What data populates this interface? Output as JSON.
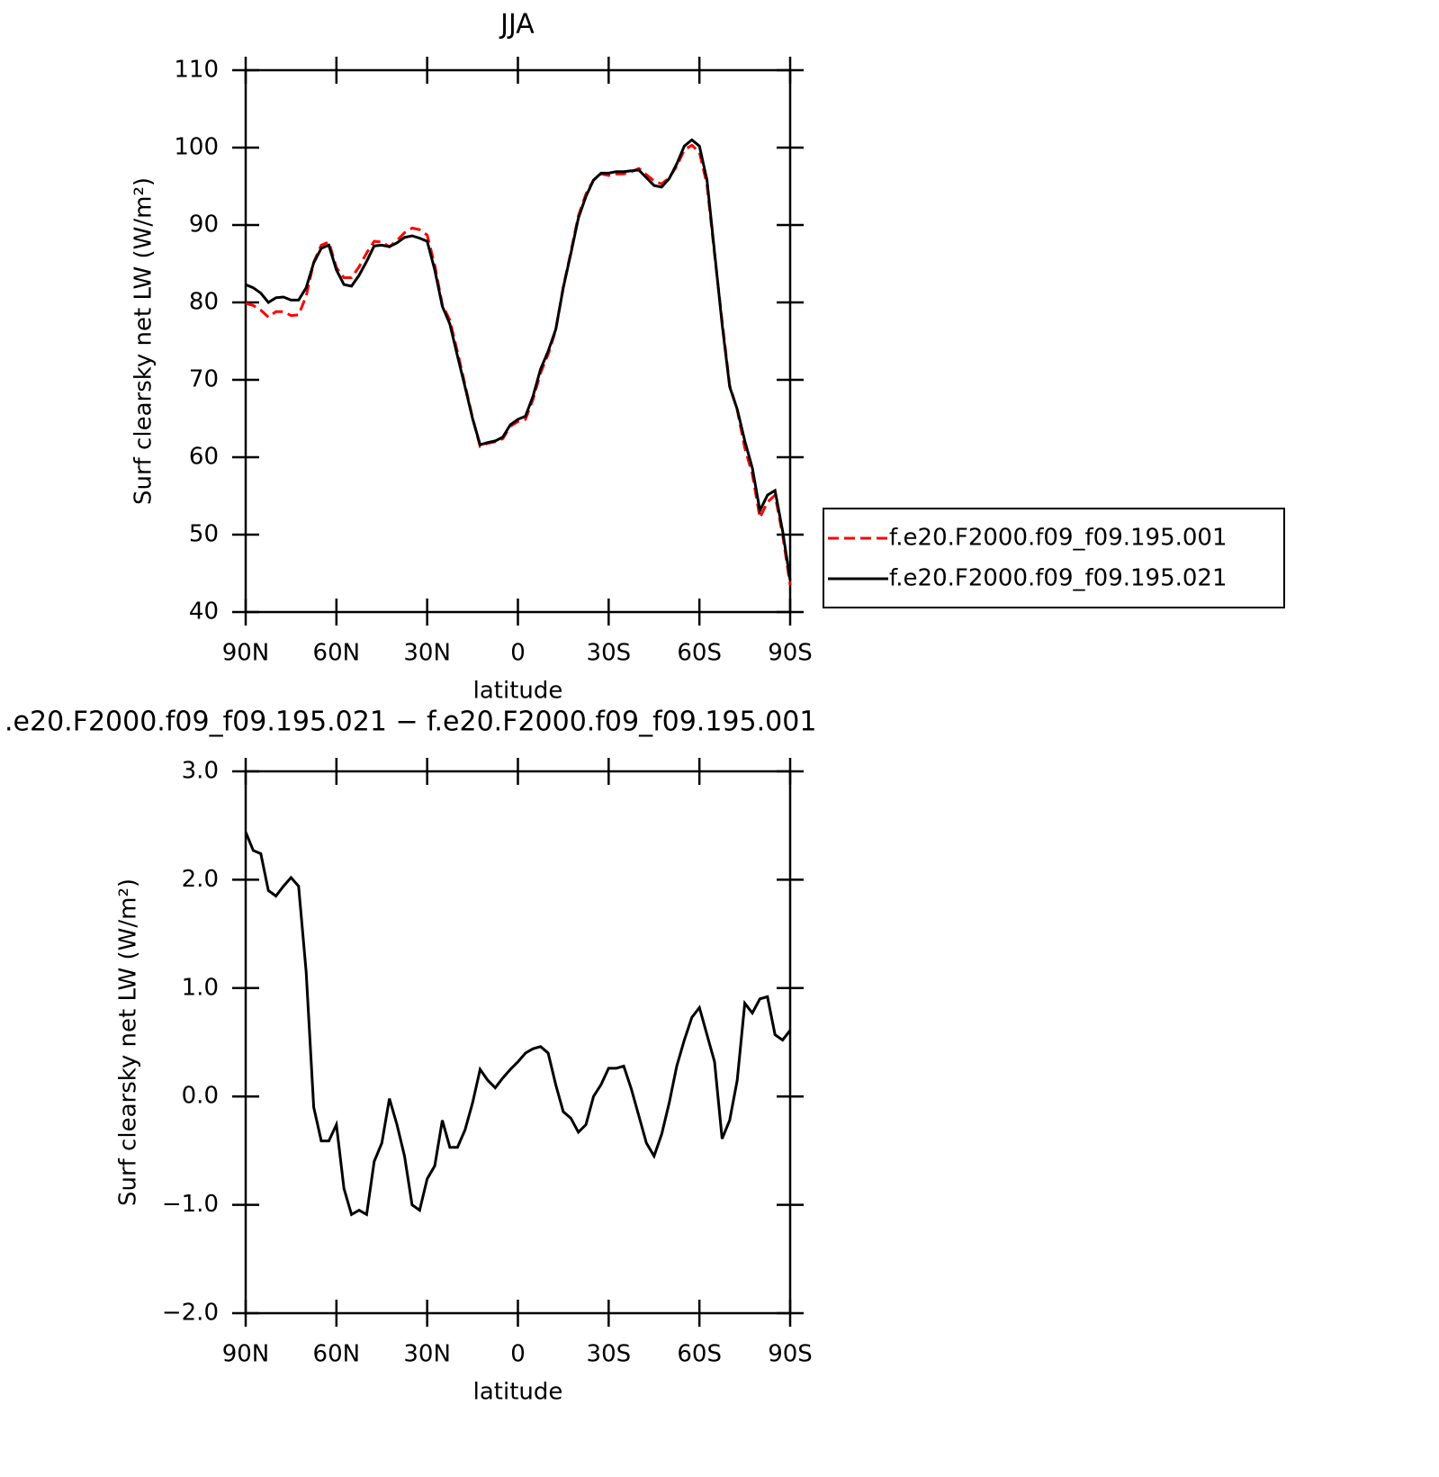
{
  "chart_data": [
    {
      "type": "line",
      "title": "JJA",
      "xlabel": "latitude",
      "ylabel": "Surf clearsky net LW (W/m²)",
      "x": [
        90,
        87.5,
        85,
        82.5,
        80,
        77.5,
        75,
        72.5,
        70,
        67.5,
        65,
        62.5,
        60,
        57.5,
        55,
        52.5,
        50,
        47.5,
        45,
        42.5,
        40,
        37.5,
        35,
        32.5,
        30,
        27.5,
        25,
        22.5,
        20,
        17.5,
        15,
        12.5,
        10,
        7.5,
        5,
        2.5,
        0,
        -2.5,
        -5,
        -7.5,
        -10,
        -12.5,
        -15,
        -17.5,
        -20,
        -22.5,
        -25,
        -27.5,
        -30,
        -32.5,
        -35,
        -37.5,
        -40,
        -42.5,
        -45,
        -47.5,
        -50,
        -52.5,
        -55,
        -57.5,
        -60,
        -62.5,
        -65,
        -67.5,
        -70,
        -72.5,
        -75,
        -77.5,
        -80,
        -82.5,
        -85,
        -87.5,
        -90
      ],
      "series": [
        {
          "name": "f.e20.F2000.f09_f09.195.001",
          "color": "#ff0000",
          "line_style": "dashed",
          "values": [
            79.9,
            79.6,
            79.0,
            78.1,
            78.8,
            78.8,
            78.3,
            78.4,
            80.8,
            85.2,
            87.4,
            87.8,
            84.5,
            83.2,
            83.2,
            84.6,
            86.4,
            87.9,
            87.8,
            87.2,
            88.0,
            89.0,
            89.6,
            89.4,
            88.7,
            84.8,
            79.7,
            77.7,
            73.6,
            69.4,
            65.1,
            61.4,
            61.8,
            62.0,
            62.4,
            64.0,
            64.6,
            64.9,
            67.5,
            70.9,
            73.3,
            76.4,
            82.0,
            86.5,
            91.2,
            94.0,
            95.8,
            96.6,
            96.4,
            96.6,
            96.6,
            96.9,
            97.3,
            96.5,
            95.7,
            95.3,
            96.1,
            97.6,
            99.7,
            100.3,
            99.4,
            95.2,
            86.2,
            77.6,
            69.3,
            66.1,
            61.2,
            57.8,
            52.2,
            54.2,
            55.1,
            50.0,
            43.5
          ]
        },
        {
          "name": "f.e20.F2000.f09_f09.195.021",
          "color": "#000000",
          "line_style": "solid",
          "values": [
            82.3,
            81.9,
            81.2,
            80.0,
            80.6,
            80.7,
            80.3,
            80.3,
            81.9,
            85.1,
            87.0,
            87.4,
            84.2,
            82.3,
            82.1,
            83.5,
            85.3,
            87.3,
            87.4,
            87.2,
            87.7,
            88.4,
            88.6,
            88.3,
            87.9,
            84.2,
            79.5,
            77.2,
            73.1,
            69.1,
            65.0,
            61.6,
            61.9,
            62.1,
            62.6,
            64.2,
            64.9,
            65.3,
            67.9,
            71.4,
            73.7,
            76.5,
            81.9,
            86.3,
            90.9,
            93.7,
            95.8,
            96.7,
            96.7,
            96.9,
            96.9,
            97.0,
            97.1,
            96.1,
            95.1,
            94.9,
            96.0,
            97.9,
            100.2,
            101.0,
            100.2,
            95.8,
            86.5,
            77.2,
            69.1,
            66.2,
            62.1,
            58.6,
            53.1,
            55.1,
            55.7,
            50.5,
            44.1
          ]
        }
      ],
      "xlim": [
        90,
        -90
      ],
      "xticks": [
        {
          "value": 90,
          "label": "90N"
        },
        {
          "value": 60,
          "label": "60N"
        },
        {
          "value": 30,
          "label": "30N"
        },
        0,
        {
          "value": -30,
          "label": "30S"
        },
        {
          "value": -60,
          "label": "60S"
        },
        {
          "value": -90,
          "label": "90S"
        }
      ],
      "ylim": [
        40,
        110
      ],
      "yticks": [
        40,
        50,
        60,
        70,
        80,
        90,
        100,
        110
      ],
      "legend": "right"
    },
    {
      "type": "line",
      "title": ".e20.F2000.f09_f09.195.021 − f.e20.F2000.f09_f09.195.001",
      "xlabel": "latitude",
      "ylabel": "Surf clearsky net LW (W/m²)",
      "x": [
        90,
        87.5,
        85,
        82.5,
        80,
        77.5,
        75,
        72.5,
        70,
        67.5,
        65,
        62.5,
        60,
        57.5,
        55,
        52.5,
        50,
        47.5,
        45,
        42.5,
        40,
        37.5,
        35,
        32.5,
        30,
        27.5,
        25,
        22.5,
        20,
        17.5,
        15,
        12.5,
        10,
        7.5,
        5,
        2.5,
        0,
        -2.5,
        -5,
        -7.5,
        -10,
        -12.5,
        -15,
        -17.5,
        -20,
        -22.5,
        -25,
        -27.5,
        -30,
        -32.5,
        -35,
        -37.5,
        -40,
        -42.5,
        -45,
        -47.5,
        -50,
        -52.5,
        -55,
        -57.5,
        -60,
        -62.5,
        -65,
        -67.5,
        -70,
        -72.5,
        -75,
        -77.5,
        -80,
        -82.5,
        -85,
        -87.5,
        -90
      ],
      "series": [
        {
          "color": "#000000",
          "line_style": "solid",
          "values": [
            2.44,
            2.27,
            2.24,
            1.9,
            1.85,
            1.94,
            2.02,
            1.94,
            1.15,
            -0.1,
            -0.41,
            -0.41,
            -0.26,
            -0.85,
            -1.09,
            -1.05,
            -1.09,
            -0.6,
            -0.43,
            -0.02,
            -0.26,
            -0.55,
            -1.0,
            -1.05,
            -0.76,
            -0.64,
            -0.22,
            -0.47,
            -0.47,
            -0.31,
            -0.06,
            0.25,
            0.15,
            0.08,
            0.17,
            0.25,
            0.32,
            0.4,
            0.44,
            0.46,
            0.4,
            0.11,
            -0.14,
            -0.2,
            -0.33,
            -0.26,
            0.0,
            0.11,
            0.26,
            0.26,
            0.28,
            0.07,
            -0.18,
            -0.43,
            -0.55,
            -0.35,
            -0.06,
            0.28,
            0.52,
            0.73,
            0.82,
            0.57,
            0.32,
            -0.39,
            -0.22,
            0.15,
            0.86,
            0.77,
            0.9,
            0.92,
            0.57,
            0.52,
            0.61
          ]
        }
      ],
      "xlim": [
        90,
        -90
      ],
      "xticks": [
        {
          "value": 90,
          "label": "90N"
        },
        {
          "value": 60,
          "label": "60N"
        },
        {
          "value": 30,
          "label": "30N"
        },
        0,
        {
          "value": -30,
          "label": "30S"
        },
        {
          "value": -60,
          "label": "60S"
        },
        {
          "value": -90,
          "label": "90S"
        }
      ],
      "ylim": [
        -2,
        3
      ],
      "yticks": [
        {
          "value": -2,
          "label": "−2.0"
        },
        {
          "value": -1,
          "label": "−1.0"
        },
        {
          "value": 0,
          "label": "0.0"
        },
        {
          "value": 1,
          "label": "1.0"
        },
        {
          "value": 2,
          "label": "2.0"
        },
        {
          "value": 3,
          "label": "3.0"
        }
      ]
    }
  ]
}
